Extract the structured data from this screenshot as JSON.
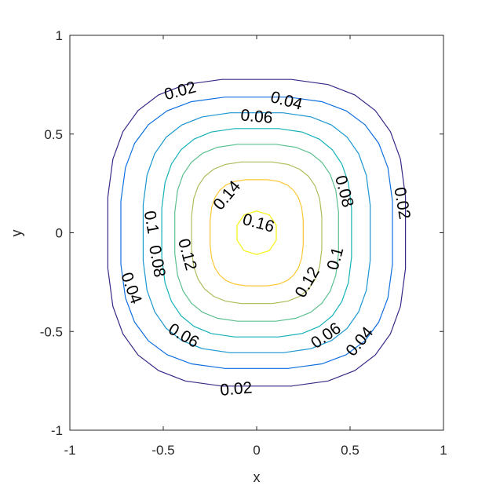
{
  "chart_data": {
    "type": "contour",
    "title": "",
    "xlabel": "x",
    "ylabel": "y",
    "xlim": [
      -1,
      1
    ],
    "ylim": [
      -1,
      1
    ],
    "xticks": [
      -1,
      -0.5,
      0,
      0.5,
      1
    ],
    "yticks": [
      -1,
      -0.5,
      0,
      0.5,
      1
    ],
    "xtick_labels": [
      "-1",
      "-0.5",
      "0",
      "0.5",
      "1"
    ],
    "ytick_labels": [
      "-1",
      "-0.5",
      "0",
      "0.5",
      "1"
    ],
    "grid": false,
    "levels": [
      {
        "value": 0.02,
        "halfwidth": 0.8,
        "halfheight": 0.78,
        "color": "#352a87"
      },
      {
        "value": 0.04,
        "halfwidth": 0.73,
        "halfheight": 0.69,
        "color": "#0f6fe0"
      },
      {
        "value": 0.06,
        "halfwidth": 0.61,
        "halfheight": 0.61,
        "color": "#1a96d0"
      },
      {
        "value": 0.08,
        "halfwidth": 0.51,
        "halfheight": 0.53,
        "color": "#14b2b8"
      },
      {
        "value": 0.1,
        "halfwidth": 0.44,
        "halfheight": 0.45,
        "color": "#5cc08f"
      },
      {
        "value": 0.12,
        "halfwidth": 0.35,
        "halfheight": 0.36,
        "color": "#a9bd5a"
      },
      {
        "value": 0.14,
        "halfwidth": 0.25,
        "halfheight": 0.27,
        "color": "#fbc733"
      },
      {
        "value": 0.16,
        "halfwidth": 0.11,
        "halfheight": 0.11,
        "color": "#f5f30f"
      }
    ],
    "labels": [
      {
        "text": "0.02",
        "x": -0.41,
        "y": 0.72
      },
      {
        "text": "0.04",
        "x": 0.16,
        "y": 0.67
      },
      {
        "text": "0.06",
        "x": 0.0,
        "y": 0.59
      },
      {
        "text": "0.08",
        "x": 0.47,
        "y": 0.21
      },
      {
        "text": "0.02",
        "x": 0.78,
        "y": 0.15
      },
      {
        "text": "0.14",
        "x": -0.16,
        "y": 0.19
      },
      {
        "text": "0.16",
        "x": 0.01,
        "y": 0.05
      },
      {
        "text": "0.1",
        "x": -0.55,
        "y": -0.01
      },
      {
        "text": "0.08",
        "x": -0.54,
        "y": -0.08
      },
      {
        "text": "0.12",
        "x": -0.37,
        "y": -0.11
      },
      {
        "text": "0.12",
        "x": 0.27,
        "y": -0.25
      },
      {
        "text": "0.1",
        "x": 0.42,
        "y": -0.13
      },
      {
        "text": "0.04",
        "x": -0.67,
        "y": -0.28
      },
      {
        "text": "0.06",
        "x": -0.39,
        "y": -0.52
      },
      {
        "text": "0.06",
        "x": 0.37,
        "y": -0.52
      },
      {
        "text": "0.04",
        "x": 0.55,
        "y": -0.55
      },
      {
        "text": "0.02",
        "x": -0.11,
        "y": -0.79
      }
    ]
  }
}
